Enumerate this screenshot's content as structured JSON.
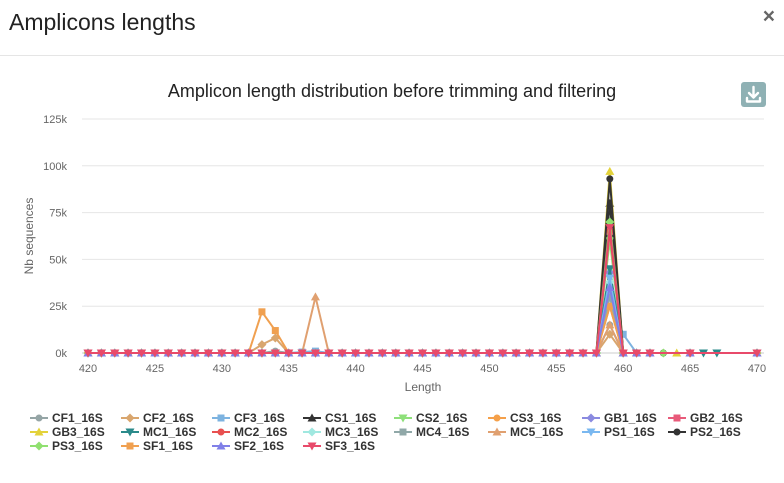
{
  "modal": {
    "title": "Amplicons lengths",
    "close_label": "×"
  },
  "icons": {
    "close": "close-icon",
    "download": "download-icon"
  },
  "colors": {
    "download_bg": "#8fb1b4"
  },
  "chart_data": {
    "type": "line",
    "title": "Amplicon length distribution before trimming and filtering",
    "xlabel": "Length",
    "ylabel": "Nb sequences",
    "xlim": [
      420,
      470
    ],
    "ylim": [
      0,
      125000
    ],
    "x_ticks": [
      "420",
      "425",
      "430",
      "435",
      "440",
      "445",
      "450",
      "455",
      "460",
      "465",
      "470"
    ],
    "y_ticks": [
      "0k",
      "25k",
      "50k",
      "75k",
      "100k",
      "125k"
    ],
    "grid": true,
    "legend_position": "bottom",
    "series": [
      {
        "name": "CF1_16S",
        "color": "#95a5a6",
        "marker": "circle",
        "points": [
          [
            420,
            0
          ],
          [
            425,
            0
          ],
          [
            430,
            0
          ],
          [
            433,
            0
          ],
          [
            434,
            1000
          ],
          [
            435,
            0
          ],
          [
            440,
            0
          ],
          [
            445,
            0
          ],
          [
            450,
            0
          ],
          [
            455,
            0
          ],
          [
            458,
            0
          ],
          [
            459,
            15000
          ],
          [
            460,
            0
          ],
          [
            465,
            0
          ],
          [
            470,
            0
          ]
        ]
      },
      {
        "name": "CF2_16S",
        "color": "#d9a66e",
        "marker": "diamond",
        "points": [
          [
            420,
            0
          ],
          [
            425,
            0
          ],
          [
            430,
            0
          ],
          [
            432,
            0
          ],
          [
            433,
            4500
          ],
          [
            434,
            8000
          ],
          [
            435,
            0
          ],
          [
            440,
            0
          ],
          [
            445,
            0
          ],
          [
            450,
            0
          ],
          [
            455,
            0
          ],
          [
            458,
            0
          ],
          [
            459,
            10000
          ],
          [
            460,
            0
          ],
          [
            465,
            0
          ],
          [
            470,
            0
          ]
        ]
      },
      {
        "name": "CF3_16S",
        "color": "#7db3e0",
        "marker": "square",
        "points": [
          [
            420,
            0
          ],
          [
            425,
            0
          ],
          [
            430,
            0
          ],
          [
            435,
            0
          ],
          [
            437,
            1000
          ],
          [
            438,
            0
          ],
          [
            440,
            0
          ],
          [
            445,
            0
          ],
          [
            450,
            0
          ],
          [
            455,
            0
          ],
          [
            458,
            0
          ],
          [
            459,
            30000
          ],
          [
            460,
            10000
          ],
          [
            461,
            0
          ],
          [
            465,
            0
          ],
          [
            470,
            0
          ]
        ]
      },
      {
        "name": "CS1_16S",
        "color": "#333333",
        "marker": "triangle",
        "points": [
          [
            420,
            0
          ],
          [
            425,
            0
          ],
          [
            430,
            0
          ],
          [
            435,
            0
          ],
          [
            440,
            0
          ],
          [
            445,
            0
          ],
          [
            450,
            0
          ],
          [
            455,
            0
          ],
          [
            458,
            0
          ],
          [
            459,
            80000
          ],
          [
            460,
            0
          ],
          [
            465,
            0
          ],
          [
            470,
            0
          ]
        ]
      },
      {
        "name": "CS2_16S",
        "color": "#8ee07a",
        "marker": "triangle-down",
        "points": [
          [
            420,
            0
          ],
          [
            425,
            0
          ],
          [
            430,
            0
          ],
          [
            435,
            0
          ],
          [
            440,
            0
          ],
          [
            445,
            0
          ],
          [
            450,
            0
          ],
          [
            455,
            0
          ],
          [
            458,
            0
          ],
          [
            459,
            60000
          ],
          [
            460,
            0
          ],
          [
            465,
            0
          ],
          [
            470,
            0
          ]
        ]
      },
      {
        "name": "CS3_16S",
        "color": "#f5a04a",
        "marker": "circle",
        "points": [
          [
            420,
            0
          ],
          [
            425,
            0
          ],
          [
            430,
            0
          ],
          [
            435,
            0
          ],
          [
            440,
            0
          ],
          [
            445,
            0
          ],
          [
            450,
            0
          ],
          [
            455,
            0
          ],
          [
            458,
            0
          ],
          [
            459,
            25000
          ],
          [
            460,
            0
          ],
          [
            465,
            0
          ],
          [
            470,
            0
          ]
        ]
      },
      {
        "name": "GB1_16S",
        "color": "#8a8ae0",
        "marker": "diamond",
        "points": [
          [
            420,
            0
          ],
          [
            425,
            0
          ],
          [
            430,
            0
          ],
          [
            435,
            0
          ],
          [
            440,
            0
          ],
          [
            445,
            0
          ],
          [
            450,
            0
          ],
          [
            455,
            0
          ],
          [
            458,
            0
          ],
          [
            459,
            43000
          ],
          [
            460,
            0
          ],
          [
            465,
            0
          ],
          [
            470,
            0
          ]
        ]
      },
      {
        "name": "GB2_16S",
        "color": "#e85a7a",
        "marker": "square",
        "points": [
          [
            420,
            0
          ],
          [
            425,
            0
          ],
          [
            430,
            0
          ],
          [
            435,
            0
          ],
          [
            440,
            0
          ],
          [
            445,
            0
          ],
          [
            450,
            0
          ],
          [
            455,
            0
          ],
          [
            458,
            0
          ],
          [
            459,
            65000
          ],
          [
            460,
            0
          ],
          [
            465,
            0
          ],
          [
            470,
            0
          ]
        ]
      },
      {
        "name": "GB3_16S",
        "color": "#e3d23a",
        "marker": "triangle",
        "points": [
          [
            420,
            0
          ],
          [
            425,
            0
          ],
          [
            430,
            0
          ],
          [
            435,
            0
          ],
          [
            440,
            0
          ],
          [
            445,
            0
          ],
          [
            450,
            0
          ],
          [
            455,
            0
          ],
          [
            458,
            0
          ],
          [
            459,
            97000
          ],
          [
            460,
            0
          ],
          [
            464,
            0
          ],
          [
            465,
            0
          ],
          [
            470,
            0
          ]
        ]
      },
      {
        "name": "MC1_16S",
        "color": "#2a8a8a",
        "marker": "triangle-down",
        "points": [
          [
            420,
            0
          ],
          [
            425,
            0
          ],
          [
            430,
            0
          ],
          [
            435,
            0
          ],
          [
            440,
            0
          ],
          [
            445,
            0
          ],
          [
            450,
            0
          ],
          [
            455,
            0
          ],
          [
            458,
            0
          ],
          [
            459,
            45000
          ],
          [
            460,
            0
          ],
          [
            466,
            0
          ],
          [
            467,
            0
          ],
          [
            470,
            0
          ]
        ]
      },
      {
        "name": "MC2_16S",
        "color": "#e85050",
        "marker": "circle",
        "points": [
          [
            420,
            0
          ],
          [
            425,
            0
          ],
          [
            430,
            0
          ],
          [
            435,
            0
          ],
          [
            440,
            0
          ],
          [
            445,
            0
          ],
          [
            450,
            0
          ],
          [
            455,
            0
          ],
          [
            458,
            0
          ],
          [
            459,
            65000
          ],
          [
            460,
            0
          ],
          [
            465,
            0
          ],
          [
            470,
            0
          ]
        ]
      },
      {
        "name": "MC3_16S",
        "color": "#a0e8e0",
        "marker": "diamond",
        "points": [
          [
            420,
            0
          ],
          [
            425,
            0
          ],
          [
            430,
            0
          ],
          [
            435,
            0
          ],
          [
            440,
            0
          ],
          [
            445,
            0
          ],
          [
            450,
            0
          ],
          [
            455,
            0
          ],
          [
            458,
            0
          ],
          [
            459,
            38000
          ],
          [
            460,
            0
          ],
          [
            465,
            0
          ],
          [
            470,
            0
          ]
        ]
      },
      {
        "name": "MC4_16S",
        "color": "#90a8a8",
        "marker": "square",
        "points": [
          [
            420,
            0
          ],
          [
            425,
            0
          ],
          [
            430,
            0
          ],
          [
            435,
            0
          ],
          [
            440,
            0
          ],
          [
            445,
            0
          ],
          [
            450,
            0
          ],
          [
            455,
            0
          ],
          [
            458,
            0
          ],
          [
            459,
            30000
          ],
          [
            460,
            0
          ],
          [
            465,
            0
          ],
          [
            470,
            0
          ]
        ]
      },
      {
        "name": "MC5_16S",
        "color": "#e0a070",
        "marker": "triangle",
        "points": [
          [
            420,
            0
          ],
          [
            425,
            0
          ],
          [
            430,
            0
          ],
          [
            435,
            0
          ],
          [
            436,
            0
          ],
          [
            437,
            30000
          ],
          [
            438,
            0
          ],
          [
            440,
            0
          ],
          [
            445,
            0
          ],
          [
            450,
            0
          ],
          [
            455,
            0
          ],
          [
            458,
            0
          ],
          [
            459,
            15000
          ],
          [
            460,
            0
          ],
          [
            465,
            0
          ],
          [
            470,
            0
          ]
        ]
      },
      {
        "name": "PS1_16S",
        "color": "#7ab8f0",
        "marker": "triangle-down",
        "points": [
          [
            420,
            0
          ],
          [
            425,
            0
          ],
          [
            430,
            0
          ],
          [
            435,
            0
          ],
          [
            440,
            0
          ],
          [
            445,
            0
          ],
          [
            450,
            0
          ],
          [
            455,
            0
          ],
          [
            458,
            0
          ],
          [
            459,
            40000
          ],
          [
            460,
            0
          ],
          [
            465,
            0
          ],
          [
            470,
            0
          ]
        ]
      },
      {
        "name": "PS2_16S",
        "color": "#333333",
        "marker": "circle",
        "points": [
          [
            420,
            0
          ],
          [
            425,
            0
          ],
          [
            430,
            0
          ],
          [
            435,
            0
          ],
          [
            440,
            0
          ],
          [
            443,
            0
          ],
          [
            445,
            0
          ],
          [
            450,
            0
          ],
          [
            455,
            0
          ],
          [
            458,
            0
          ],
          [
            459,
            93000
          ],
          [
            460,
            0
          ],
          [
            463,
            0
          ],
          [
            465,
            0
          ],
          [
            470,
            0
          ]
        ]
      },
      {
        "name": "PS3_16S",
        "color": "#90e070",
        "marker": "diamond",
        "points": [
          [
            420,
            0
          ],
          [
            425,
            0
          ],
          [
            430,
            0
          ],
          [
            435,
            0
          ],
          [
            440,
            0
          ],
          [
            445,
            0
          ],
          [
            450,
            0
          ],
          [
            455,
            0
          ],
          [
            458,
            0
          ],
          [
            459,
            70000
          ],
          [
            460,
            0
          ],
          [
            463,
            0
          ],
          [
            465,
            0
          ],
          [
            470,
            0
          ]
        ]
      },
      {
        "name": "SF1_16S",
        "color": "#f0a050",
        "marker": "square",
        "points": [
          [
            420,
            0
          ],
          [
            425,
            0
          ],
          [
            430,
            0
          ],
          [
            432,
            0
          ],
          [
            433,
            22000
          ],
          [
            434,
            12000
          ],
          [
            435,
            0
          ],
          [
            440,
            0
          ],
          [
            445,
            0
          ],
          [
            450,
            0
          ],
          [
            455,
            0
          ],
          [
            458,
            0
          ],
          [
            459,
            25000
          ],
          [
            460,
            0
          ],
          [
            465,
            0
          ],
          [
            470,
            0
          ]
        ]
      },
      {
        "name": "SF2_16S",
        "color": "#8080e8",
        "marker": "triangle",
        "points": [
          [
            420,
            0
          ],
          [
            425,
            0
          ],
          [
            430,
            0
          ],
          [
            435,
            0
          ],
          [
            440,
            0
          ],
          [
            445,
            0
          ],
          [
            450,
            0
          ],
          [
            455,
            0
          ],
          [
            458,
            0
          ],
          [
            459,
            35000
          ],
          [
            460,
            0
          ],
          [
            465,
            0
          ],
          [
            470,
            0
          ]
        ]
      },
      {
        "name": "SF3_16S",
        "color": "#e84a6a",
        "marker": "triangle-down",
        "points": [
          [
            420,
            0
          ],
          [
            425,
            0
          ],
          [
            430,
            0
          ],
          [
            435,
            0
          ],
          [
            440,
            0
          ],
          [
            445,
            0
          ],
          [
            450,
            0
          ],
          [
            455,
            0
          ],
          [
            458,
            0
          ],
          [
            459,
            67000
          ],
          [
            460,
            0
          ],
          [
            465,
            0
          ],
          [
            470,
            0
          ]
        ]
      }
    ]
  }
}
